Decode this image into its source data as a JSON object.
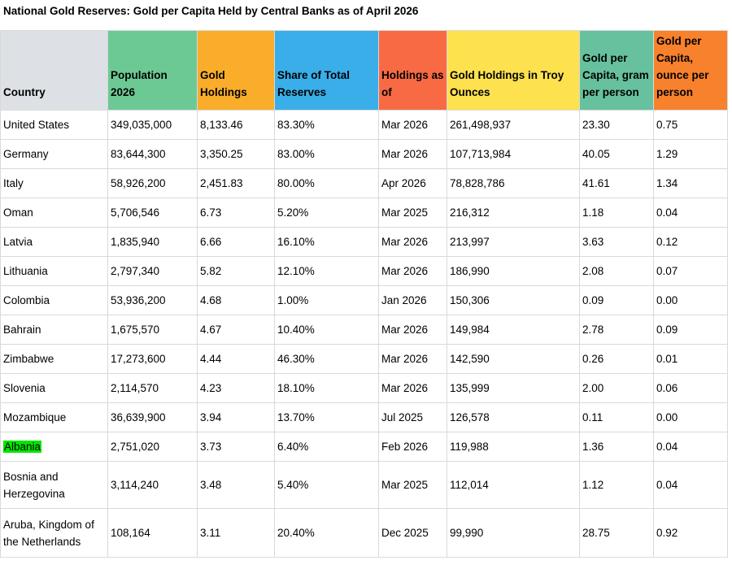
{
  "title": "National Gold Reserves: Gold per Capita Held by Central Banks as of April 2026",
  "highlight_color": "#00e600",
  "columns": [
    {
      "label": "Country",
      "bg": "#dde1e6"
    },
    {
      "label": "Population 2026",
      "bg": "#6dc993"
    },
    {
      "label": "Gold Holdings",
      "bg": "#f9ad2a"
    },
    {
      "label": "Share of Total Reserves",
      "bg": "#39aee8"
    },
    {
      "label": "Holdings as of",
      "bg": "#f86a43"
    },
    {
      "label": "Gold Holdings in Troy Ounces",
      "bg": "#fde14f"
    },
    {
      "label": "Gold per Capita, gram per person",
      "bg": "#67c19e"
    },
    {
      "label": "Gold per Capita, ounce per person",
      "bg": "#f8812d"
    }
  ],
  "rows": [
    [
      "United States",
      "349,035,000",
      "8,133.46",
      "83.30%",
      "Mar 2026",
      "261,498,937",
      "23.30",
      "0.75"
    ],
    [
      "Germany",
      "83,644,300",
      "3,350.25",
      "83.00%",
      "Mar 2026",
      "107,713,984",
      "40.05",
      "1.29"
    ],
    [
      "Italy",
      "58,926,200",
      "2,451.83",
      "80.00%",
      "Apr 2026",
      "78,828,786",
      "41.61",
      "1.34"
    ],
    [
      "Oman",
      "5,706,546",
      "6.73",
      "5.20%",
      "Mar 2025",
      "216,312",
      "1.18",
      "0.04"
    ],
    [
      "Latvia",
      "1,835,940",
      "6.66",
      "16.10%",
      "Mar 2026",
      "213,997",
      "3.63",
      "0.12"
    ],
    [
      "Lithuania",
      "2,797,340",
      "5.82",
      "12.10%",
      "Mar 2026",
      "186,990",
      "2.08",
      "0.07"
    ],
    [
      "Colombia",
      "53,936,200",
      "4.68",
      "1.00%",
      "Jan 2026",
      "150,306",
      "0.09",
      "0.00"
    ],
    [
      "Bahrain",
      "1,675,570",
      "4.67",
      "10.40%",
      "Mar 2026",
      "149,984",
      "2.78",
      "0.09"
    ],
    [
      "Zimbabwe",
      "17,273,600",
      "4.44",
      "46.30%",
      "Mar 2026",
      "142,590",
      "0.26",
      "0.01"
    ],
    [
      "Slovenia",
      "2,114,570",
      "4.23",
      "18.10%",
      "Mar 2026",
      "135,999",
      "2.00",
      "0.06"
    ],
    [
      "Mozambique",
      "36,639,900",
      "3.94",
      "13.70%",
      "Jul 2025",
      "126,578",
      "0.11",
      "0.00"
    ],
    [
      "Albania",
      "2,751,020",
      "3.73",
      "6.40%",
      "Feb 2026",
      "119,988",
      "1.36",
      "0.04"
    ],
    [
      "Bosnia and Herzegovina",
      "3,114,240",
      "3.48",
      "5.40%",
      "Mar 2025",
      "112,014",
      "1.12",
      "0.04"
    ],
    [
      "Aruba, Kingdom of the Netherlands",
      "108,164",
      "3.11",
      "20.40%",
      "Dec 2025",
      "99,990",
      "28.75",
      "0.92"
    ]
  ],
  "highlighted_row": "Albania"
}
